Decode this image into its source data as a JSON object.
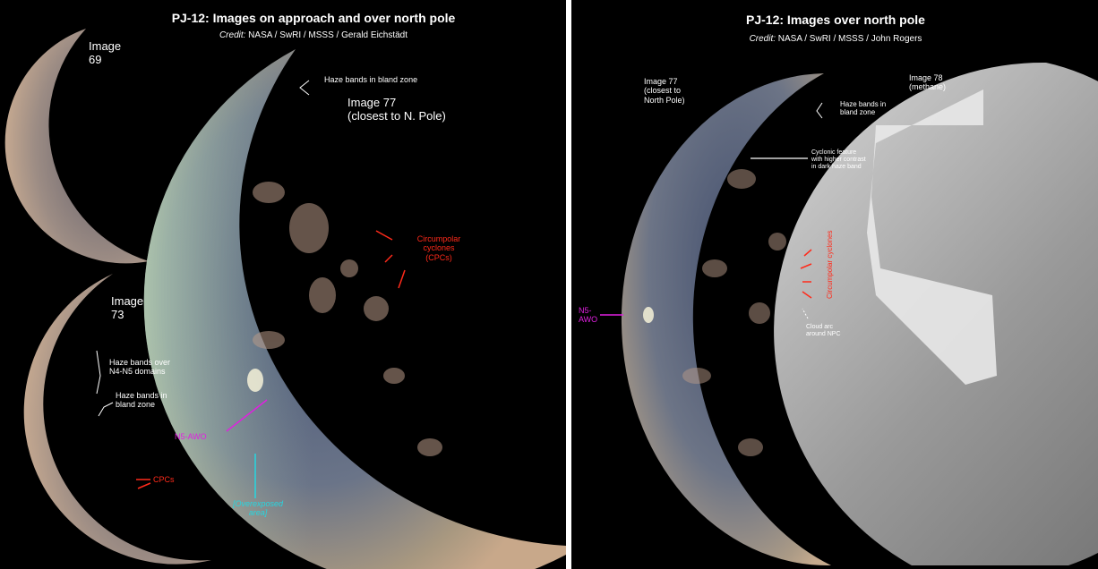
{
  "left": {
    "title": "PJ-12:  Images on approach and over north pole",
    "credit_prefix": "Credit:",
    "credit_text": " NASA / SwRI / MSSS / Gerald Eichstädt",
    "img69": "Image\n69",
    "img73": "Image\n73",
    "img77": "Image 77\n(closest to  N. Pole)",
    "haze_bland_top": "Haze bands in bland zone",
    "haze_over": "Haze bands over\nN4-N5 domains",
    "haze_bland": "Haze bands in\nbland zone",
    "cpcs": "CPCs",
    "circumpolar": "Circumpolar\ncyclones\n(CPCs)",
    "n5awo": "N5-AWO",
    "overexposed": "[Overexposed\narea]"
  },
  "right": {
    "title": "PJ-12:  Images over north pole",
    "credit_prefix": "Credit:",
    "credit_text": " NASA / SwRI / MSSS / John Rogers",
    "img77": "Image 77\n(closest to\nNorth Pole)",
    "img78": "Image 78\n(methane)",
    "haze_bland": "Haze bands in\nbland zone",
    "cyclonic": "Cyclonic feature\nwith higher contrast\nin dark haze band",
    "circumpolar": "Circumpolar cyclones",
    "cloud_arc": "Cloud arc\naround NPC",
    "n5awo": "N5-\nAWO"
  },
  "colors": {
    "red": "#ff2a1a",
    "magenta": "#e020e0",
    "cyan": "#26d6e0",
    "white": "#ffffff"
  }
}
